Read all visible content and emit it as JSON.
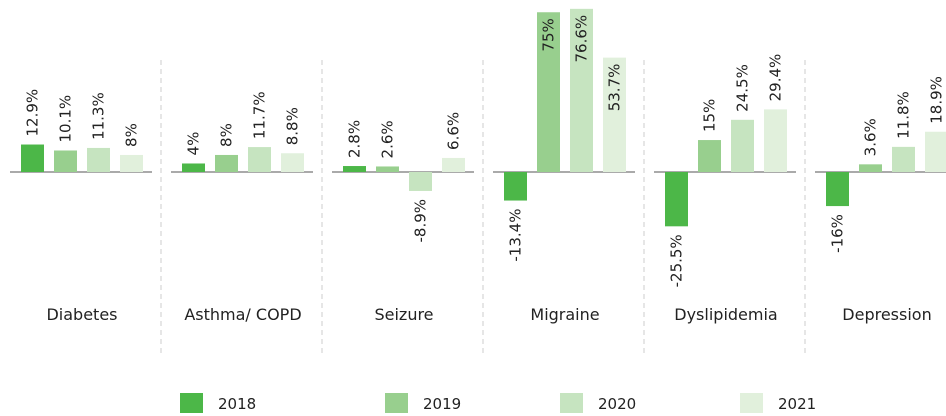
{
  "chart_data": {
    "type": "bar",
    "categories": [
      "Diabetes",
      "Asthma/ COPD",
      "Seizure",
      "Migraine",
      "Dyslipidemia",
      "Depression"
    ],
    "series": [
      {
        "name": "2018",
        "color": "#4cb748",
        "values": [
          12.9,
          4,
          2.8,
          -13.4,
          -25.5,
          -16
        ],
        "value_labels": [
          "12.9%",
          "4%",
          "2.8%",
          "-13.4%",
          "-25.5%",
          "-16%"
        ]
      },
      {
        "name": "2019",
        "color": "#98cf8e",
        "values": [
          10.1,
          8,
          2.6,
          75,
          15,
          3.6
        ],
        "value_labels": [
          "10.1%",
          "8%",
          "2.6%",
          "75%",
          "15%",
          "3.6%"
        ]
      },
      {
        "name": "2020",
        "color": "#c6e4c0",
        "values": [
          11.3,
          11.7,
          -8.9,
          76.6,
          24.5,
          11.8
        ],
        "value_labels": [
          "11.3%",
          "11.7%",
          "-8.9%",
          "76.6%",
          "24.5%",
          "11.8%"
        ]
      },
      {
        "name": "2021",
        "color": "#e1f0dc",
        "values": [
          8,
          8.8,
          6.6,
          53.7,
          29.4,
          18.9
        ],
        "value_labels": [
          "8%",
          "8.8%",
          "6.6%",
          "53.7%",
          "29.4%",
          "18.9%"
        ]
      }
    ]
  }
}
